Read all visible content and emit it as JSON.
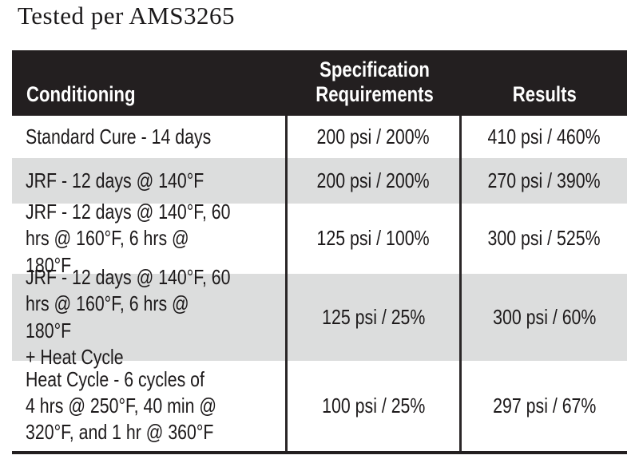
{
  "title": "Tested per AMS3265",
  "table": {
    "columns": [
      {
        "label": "Conditioning"
      },
      {
        "label": "Specification\nRequirements"
      },
      {
        "label": "Results"
      }
    ],
    "rows": [
      {
        "conditioning": "Standard Cure - 14 days",
        "spec": "200 psi / 200%",
        "result": "410 psi / 460%"
      },
      {
        "conditioning": "JRF - 12 days @ 140°F",
        "spec": "200 psi / 200%",
        "result": "270 psi / 390%"
      },
      {
        "conditioning": "JRF - 12 days @ 140°F, 60\nhrs @ 160°F, 6 hrs @ 180°F",
        "spec": "125 psi / 100%",
        "result": "300 psi / 525%"
      },
      {
        "conditioning": "JRF - 12 days @ 140°F, 60\nhrs @ 160°F, 6 hrs @ 180°F\n+ Heat Cycle",
        "spec": "125 psi / 25%",
        "result": "300 psi / 60%"
      },
      {
        "conditioning": "Heat Cycle - 6 cycles of\n4 hrs @ 250°F, 40 min @\n320°F, and 1 hr @ 360°F",
        "spec": "100 psi / 25%",
        "result": "297 psi / 67%"
      }
    ],
    "colors": {
      "header_bg": "#231f20",
      "header_text": "#ffffff",
      "row_bg": "#ffffff",
      "row_alt_bg": "#dcdddd",
      "divider": "#2a2627",
      "bottom_border": "#231f20",
      "body_text": "#1d1a1b"
    }
  }
}
